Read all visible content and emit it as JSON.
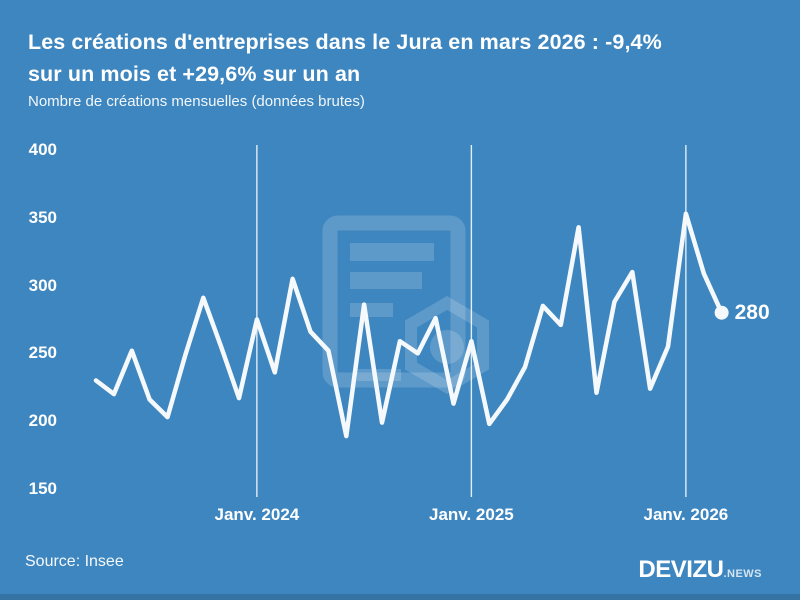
{
  "header": {
    "title_line1": "Les créations d'entreprises dans le Jura en mars 2026 : -9,4%",
    "title_line2": "sur un mois et +29,6% sur un an",
    "subtitle": "Nombre de créations mensuelles (données brutes)"
  },
  "chart_data": {
    "type": "line",
    "title": "Les créations d'entreprises dans le Jura en mars 2026 : -9,4% sur un mois et +29,6% sur un an",
    "ylabel": "Nombre de créations mensuelles (données brutes)",
    "x_months": [
      "2023-04",
      "2023-05",
      "2023-06",
      "2023-07",
      "2023-08",
      "2023-09",
      "2023-10",
      "2023-11",
      "2023-12",
      "2024-01",
      "2024-02",
      "2024-03",
      "2024-04",
      "2024-05",
      "2024-06",
      "2024-07",
      "2024-08",
      "2024-09",
      "2024-10",
      "2024-11",
      "2024-12",
      "2025-01",
      "2025-02",
      "2025-03",
      "2025-04",
      "2025-05",
      "2025-06",
      "2025-07",
      "2025-08",
      "2025-09",
      "2025-10",
      "2025-11",
      "2025-12",
      "2026-01",
      "2026-02",
      "2026-03"
    ],
    "values": [
      230,
      220,
      252,
      216,
      203,
      249,
      291,
      255,
      217,
      275,
      236,
      305,
      266,
      252,
      189,
      286,
      199,
      259,
      250,
      276,
      213,
      259,
      198,
      216,
      240,
      285,
      271,
      343,
      221,
      288,
      310,
      224,
      255,
      353,
      309,
      280
    ],
    "ylim": [
      150,
      400
    ],
    "yticks": [
      400,
      350,
      300,
      250,
      200,
      150
    ],
    "xticks": [
      {
        "label": "Janv. 2024",
        "month_index": 9
      },
      {
        "label": "Janv. 2025",
        "month_index": 21
      },
      {
        "label": "Janv. 2026",
        "month_index": 33
      }
    ],
    "end_label": "280",
    "grid": "vertical-only",
    "legend": "none",
    "line_color": "#F5F9FC",
    "grid_color": "rgba(255,255,255,0.85)",
    "background_color": "#3E86BF",
    "watermark_color": "rgba(255,255,255,0.17)"
  },
  "footer": {
    "source": "Source: Insee",
    "brand": "DEVIZU",
    "brand_suffix": ".NEWS"
  }
}
